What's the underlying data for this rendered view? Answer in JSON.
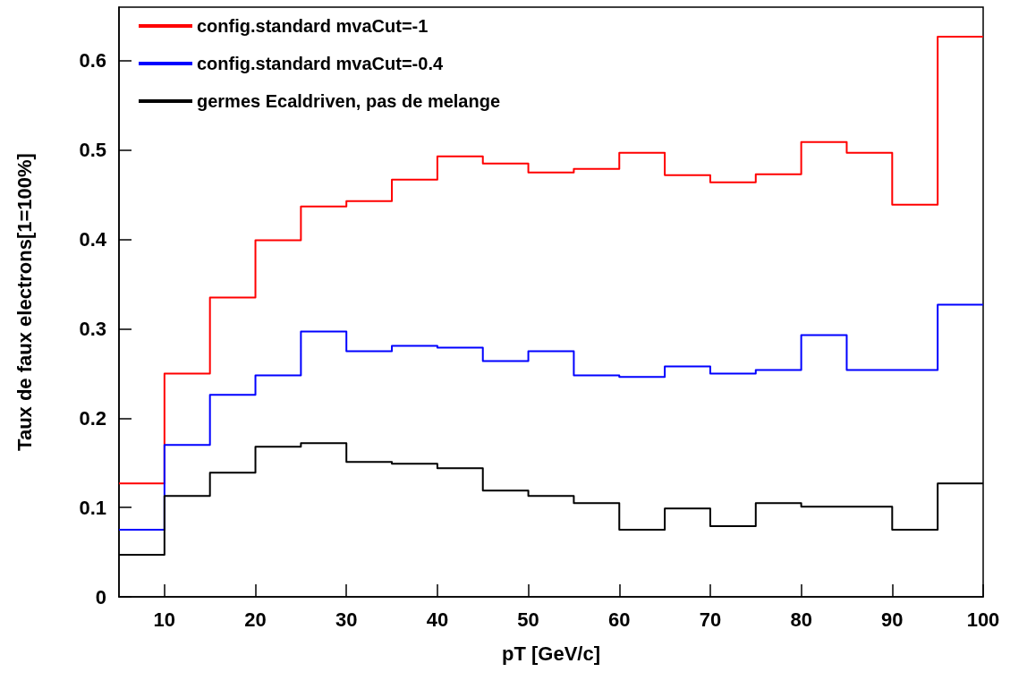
{
  "chart_data": {
    "type": "histogram",
    "xlabel": "pT [GeV/c]",
    "ylabel": "Taux de faux electrons[1=100%]",
    "bins": [
      5,
      10,
      15,
      20,
      25,
      30,
      35,
      40,
      45,
      50,
      55,
      60,
      65,
      70,
      75,
      80,
      85,
      90,
      95,
      100
    ],
    "series": [
      {
        "name": "config.standard mvaCut=-1",
        "color": "#ff0000",
        "values": [
          0.127,
          0.25,
          0.335,
          0.399,
          0.437,
          0.443,
          0.467,
          0.493,
          0.485,
          0.475,
          0.479,
          0.497,
          0.472,
          0.464,
          0.473,
          0.509,
          0.497,
          0.439,
          0.627
        ]
      },
      {
        "name": "config.standard mvaCut=-0.4",
        "color": "#0000ff",
        "values": [
          0.075,
          0.17,
          0.226,
          0.248,
          0.297,
          0.275,
          0.281,
          0.279,
          0.264,
          0.275,
          0.248,
          0.246,
          0.258,
          0.25,
          0.254,
          0.293,
          0.254,
          0.254,
          0.327
        ]
      },
      {
        "name": "germes Ecaldriven, pas de melange",
        "color": "#000000",
        "values": [
          0.047,
          0.113,
          0.139,
          0.168,
          0.172,
          0.151,
          0.149,
          0.144,
          0.119,
          0.113,
          0.105,
          0.075,
          0.099,
          0.079,
          0.105,
          0.101,
          0.101,
          0.075,
          0.127
        ]
      }
    ],
    "xlim": [
      5,
      100
    ],
    "xticks": [
      10,
      20,
      30,
      40,
      50,
      60,
      70,
      80,
      90,
      100
    ],
    "ylim": [
      0,
      0.66
    ],
    "yticks": [
      0,
      0.1,
      0.2,
      0.3,
      0.4,
      0.5,
      0.6
    ],
    "legend": "top left",
    "marker": "none",
    "line_style": "solid",
    "grid": false
  }
}
